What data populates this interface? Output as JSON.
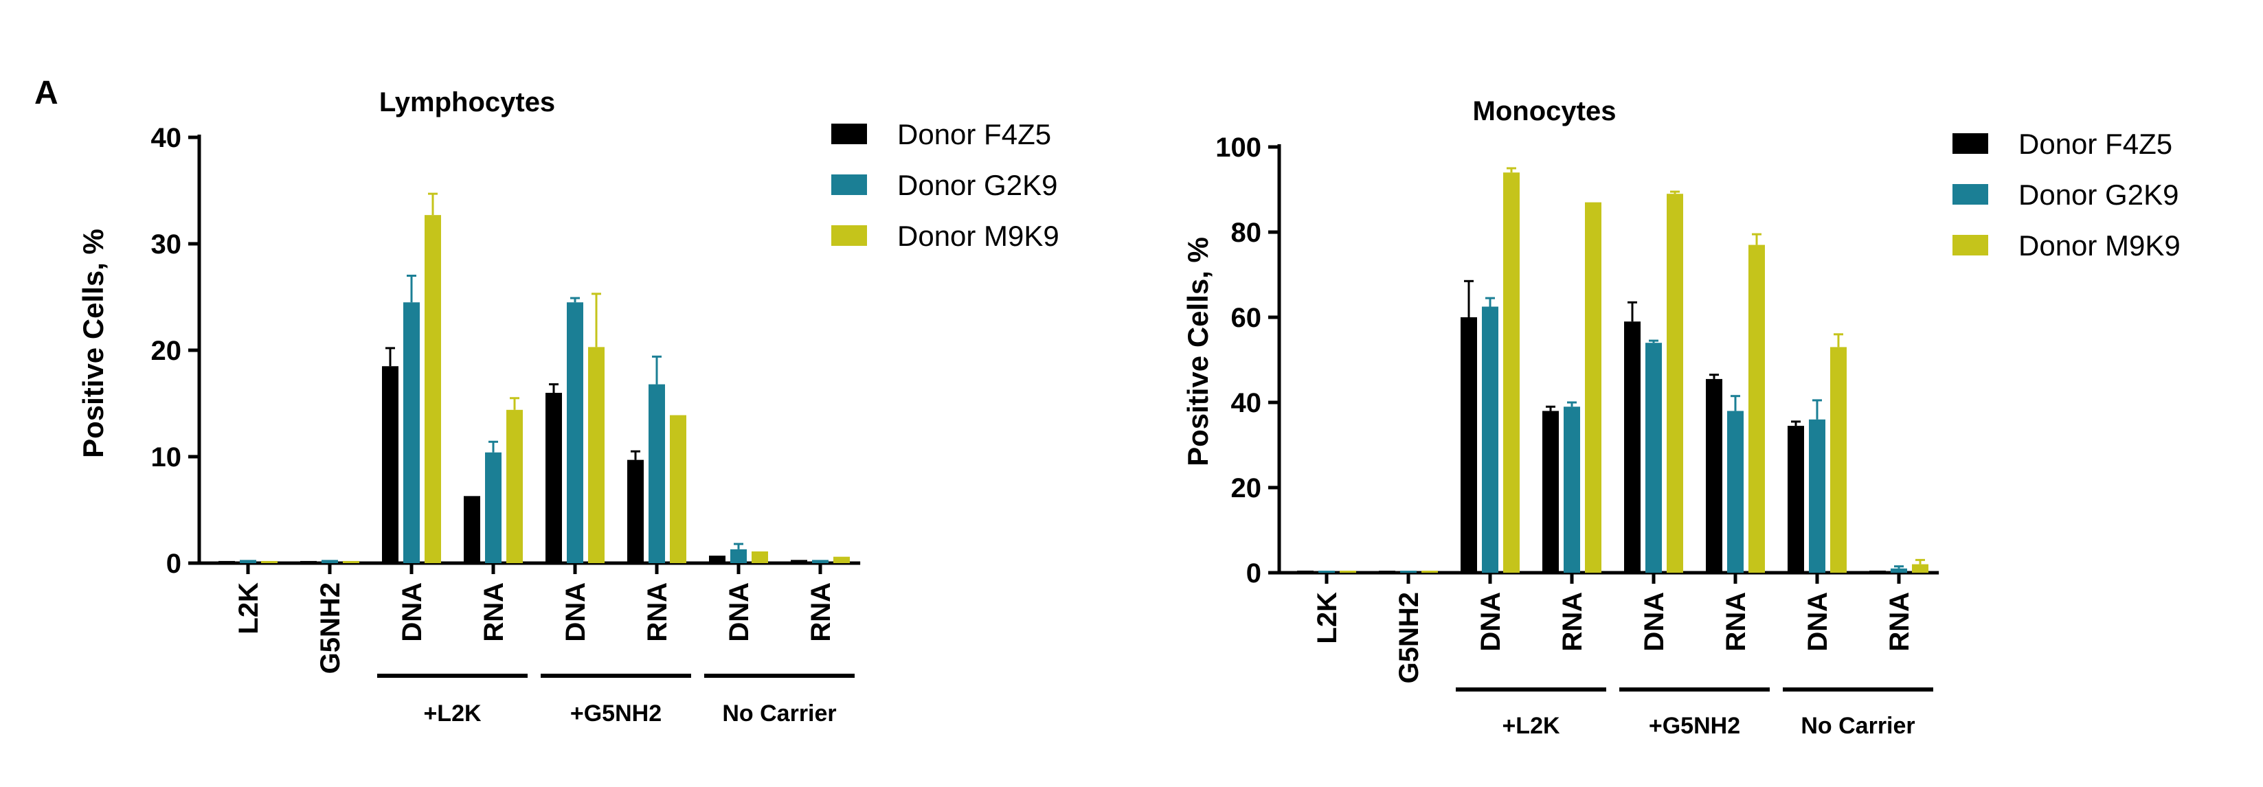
{
  "panel_label": "A",
  "colors": {
    "F4Z5": "#000000",
    "G2K9": "#1b7f95",
    "M9K9": "#c5c41b"
  },
  "chart_data": [
    {
      "type": "bar",
      "title": "Lymphocytes",
      "ylabel": "Positive Cells, %",
      "ylim": [
        0,
        40
      ],
      "yticks": [
        0,
        10,
        20,
        30,
        40
      ],
      "categories": [
        "L2K",
        "G5NH2",
        "DNA",
        "RNA",
        "DNA",
        "RNA",
        "DNA",
        "RNA"
      ],
      "groups": [
        {
          "label": "+L2K",
          "start": 2,
          "end": 3
        },
        {
          "label": "+G5NH2",
          "start": 4,
          "end": 5
        },
        {
          "label": "No Carrier",
          "start": 6,
          "end": 7
        }
      ],
      "series": [
        {
          "name": "Donor F4Z5",
          "color": "#000000",
          "values": [
            0.2,
            0.2,
            18.5,
            6.3,
            16.0,
            9.7,
            0.7,
            0.3
          ],
          "errors": [
            0,
            0,
            1.7,
            0,
            0.8,
            0.8,
            0,
            0
          ]
        },
        {
          "name": "Donor G2K9",
          "color": "#1b7f95",
          "values": [
            0.3,
            0.3,
            24.5,
            10.4,
            24.5,
            16.8,
            1.3,
            0.3
          ],
          "errors": [
            0,
            0,
            2.5,
            1.0,
            0.4,
            2.6,
            0.5,
            0
          ]
        },
        {
          "name": "Donor M9K9",
          "color": "#c5c41b",
          "values": [
            0.2,
            0.2,
            32.7,
            14.4,
            20.3,
            13.9,
            1.1,
            0.6
          ],
          "errors": [
            0,
            0,
            2.0,
            1.1,
            5.0,
            0,
            0,
            0
          ]
        }
      ]
    },
    {
      "type": "bar",
      "title": "Monocytes",
      "ylabel": "Positive Cells, %",
      "ylim": [
        0,
        100
      ],
      "yticks": [
        0,
        20,
        40,
        60,
        80,
        100
      ],
      "categories": [
        "L2K",
        "G5NH2",
        "DNA",
        "RNA",
        "DNA",
        "RNA",
        "DNA",
        "RNA"
      ],
      "groups": [
        {
          "label": "+L2K",
          "start": 2,
          "end": 3
        },
        {
          "label": "+G5NH2",
          "start": 4,
          "end": 5
        },
        {
          "label": "No Carrier",
          "start": 6,
          "end": 7
        }
      ],
      "series": [
        {
          "name": "Donor F4Z5",
          "color": "#000000",
          "values": [
            0.5,
            0.3,
            60.0,
            38.0,
            59.0,
            45.5,
            34.5,
            0.5
          ],
          "errors": [
            0,
            0,
            8.5,
            1.0,
            4.5,
            1.0,
            1.0,
            0
          ]
        },
        {
          "name": "Donor G2K9",
          "color": "#1b7f95",
          "values": [
            0.3,
            0.3,
            62.5,
            39.0,
            54.0,
            38.0,
            36.0,
            1.0
          ],
          "errors": [
            0,
            0,
            2.0,
            1.0,
            0.5,
            3.5,
            4.5,
            0.5
          ]
        },
        {
          "name": "Donor M9K9",
          "color": "#c5c41b",
          "values": [
            0.3,
            0.3,
            94.0,
            87.0,
            89.0,
            77.0,
            53.0,
            2.0
          ],
          "errors": [
            0,
            0,
            1.0,
            0,
            0.5,
            2.5,
            3.0,
            1.0
          ]
        }
      ]
    }
  ]
}
